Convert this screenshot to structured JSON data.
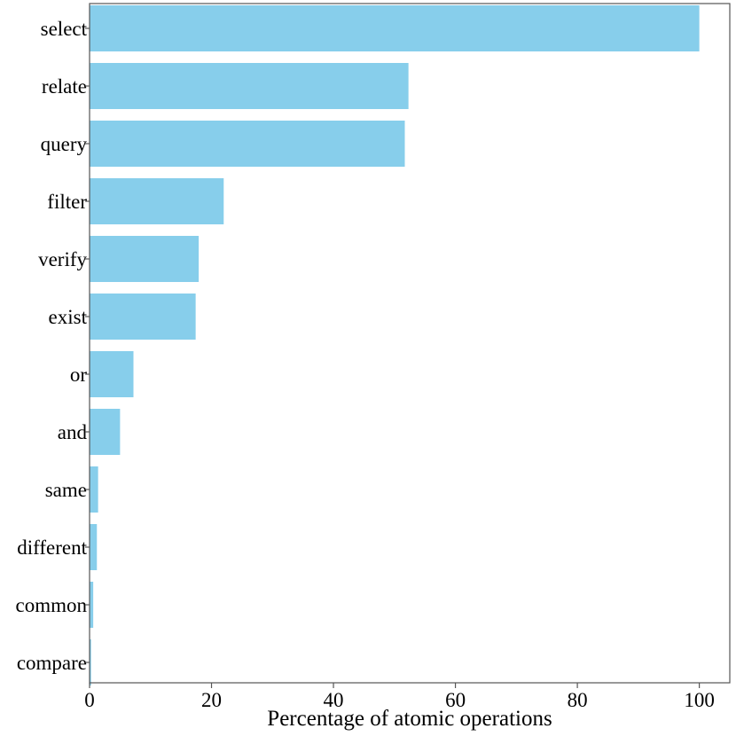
{
  "chart_data": {
    "type": "bar",
    "orientation": "horizontal",
    "categories": [
      "select",
      "relate",
      "query",
      "filter",
      "verify",
      "exist",
      "or",
      "and",
      "same",
      "different",
      "common",
      "compare"
    ],
    "values": [
      100,
      52.3,
      51.7,
      22,
      17.9,
      17.4,
      7.2,
      5,
      1.4,
      1.2,
      0.6,
      0.25
    ],
    "title": "",
    "xlabel": "Percentage of atomic operations",
    "ylabel": "",
    "xlim": [
      0,
      105
    ],
    "xticks": [
      0,
      20,
      40,
      60,
      80,
      100
    ],
    "grid": false,
    "legend": "none",
    "bar_color": "#87CEEB",
    "axis_color": "#555555"
  }
}
